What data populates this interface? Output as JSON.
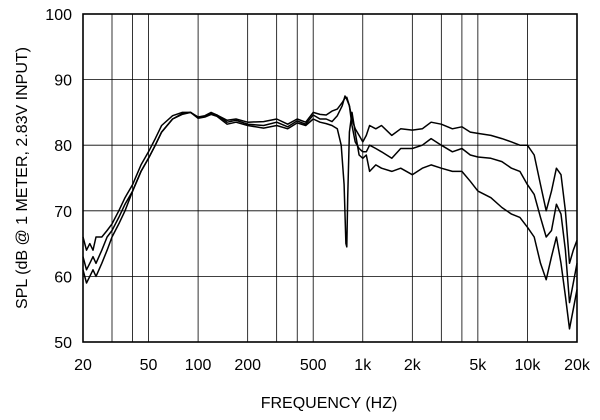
{
  "chart_data": {
    "type": "line",
    "title": "",
    "xlabel": "FREQUENCY  (HZ)",
    "ylabel": "SPL (dB @ 1 METER, 2.83V INPUT)",
    "x_scale": "log",
    "xlim": [
      20,
      20000
    ],
    "ylim": [
      50,
      100
    ],
    "grid": true,
    "legend": "none",
    "x_ticks": [
      {
        "value": 20,
        "label": "20"
      },
      {
        "value": 50,
        "label": "50"
      },
      {
        "value": 100,
        "label": "100"
      },
      {
        "value": 200,
        "label": "200"
      },
      {
        "value": 500,
        "label": "500"
      },
      {
        "value": 1000,
        "label": "1k"
      },
      {
        "value": 2000,
        "label": "2k"
      },
      {
        "value": 5000,
        "label": "5k"
      },
      {
        "value": 10000,
        "label": "10k"
      },
      {
        "value": 20000,
        "label": "20k"
      }
    ],
    "x_grid": [
      20,
      30,
      40,
      50,
      100,
      200,
      300,
      400,
      500,
      1000,
      2000,
      3000,
      4000,
      5000,
      10000,
      20000
    ],
    "y_ticks": [
      {
        "value": 50,
        "label": "50"
      },
      {
        "value": 60,
        "label": "60"
      },
      {
        "value": 70,
        "label": "70"
      },
      {
        "value": 80,
        "label": "80"
      },
      {
        "value": 90,
        "label": "90"
      },
      {
        "value": 100,
        "label": "100"
      }
    ],
    "series": [
      {
        "x": [
          20,
          21,
          22,
          23,
          24,
          26,
          28,
          30,
          33,
          36,
          40,
          45,
          50,
          55,
          60,
          70,
          80,
          90,
          100,
          110,
          120,
          130,
          150,
          170,
          200,
          250,
          300,
          350,
          400,
          450,
          500,
          550,
          600,
          650,
          700,
          750,
          780,
          800,
          830,
          860,
          900,
          950,
          1000,
          1050,
          1100,
          1200,
          1300,
          1500,
          1700,
          2000,
          2300,
          2600,
          3000,
          3500,
          4000,
          4500,
          5000,
          6000,
          7000,
          8000,
          9000,
          10000,
          11000,
          12000,
          13000,
          14000,
          15000,
          16000,
          17000,
          18000,
          19000,
          20000
        ],
        "values": [
          66,
          64,
          65,
          64,
          66,
          66,
          67,
          68,
          70,
          72,
          74,
          77,
          79,
          81,
          83,
          84.5,
          85,
          85,
          84.3,
          84.5,
          85,
          84.6,
          83.8,
          84,
          83.5,
          83.6,
          84,
          83.2,
          84,
          83.5,
          85,
          84.7,
          84.6,
          85.2,
          85.5,
          86.5,
          87.2,
          87.3,
          86,
          84,
          82.5,
          81.5,
          80.5,
          81.5,
          83,
          82.5,
          83,
          81.5,
          82.5,
          82.3,
          82.5,
          83.5,
          83.2,
          82.5,
          82.8,
          82,
          81.8,
          81.5,
          81,
          80.5,
          80,
          80,
          78.5,
          74,
          70,
          73,
          76.5,
          75.5,
          70,
          62,
          64,
          65.5
        ]
      },
      {
        "x": [
          20,
          21,
          22,
          23,
          24,
          26,
          28,
          30,
          33,
          36,
          40,
          45,
          50,
          55,
          60,
          70,
          80,
          90,
          100,
          110,
          120,
          130,
          150,
          170,
          200,
          250,
          300,
          350,
          400,
          450,
          500,
          550,
          600,
          650,
          700,
          750,
          780,
          800,
          830,
          860,
          900,
          950,
          1000,
          1050,
          1100,
          1200,
          1300,
          1500,
          1700,
          2000,
          2300,
          2600,
          3000,
          3500,
          4000,
          4500,
          5000,
          6000,
          7000,
          8000,
          9000,
          10000,
          11000,
          12000,
          13000,
          14000,
          15000,
          16000,
          17000,
          18000,
          19000,
          20000
        ],
        "values": [
          63,
          61,
          62,
          63,
          62,
          64,
          66,
          67,
          69,
          71,
          73,
          76,
          78,
          80,
          82,
          84,
          84.8,
          85,
          84.2,
          84.4,
          84.9,
          84.6,
          83.5,
          83.8,
          83.2,
          83,
          83.5,
          82.8,
          83.7,
          83.2,
          84.6,
          84,
          84,
          83.6,
          84.5,
          86,
          87.5,
          87,
          86,
          83,
          80.5,
          79.5,
          79,
          79,
          80,
          79.5,
          79,
          78,
          79.5,
          79.5,
          80,
          81,
          80,
          79,
          79.5,
          78.5,
          78.2,
          78,
          77.5,
          76.5,
          76,
          74,
          72.5,
          69,
          66,
          67,
          71,
          69.5,
          64,
          56,
          59,
          62
        ]
      },
      {
        "x": [
          20,
          21,
          22,
          23,
          24,
          26,
          28,
          30,
          33,
          36,
          40,
          45,
          50,
          55,
          60,
          70,
          80,
          90,
          100,
          110,
          120,
          130,
          150,
          170,
          200,
          250,
          300,
          350,
          400,
          450,
          500,
          550,
          600,
          650,
          700,
          740,
          770,
          790,
          800,
          810,
          830,
          860,
          900,
          950,
          1000,
          1050,
          1100,
          1200,
          1300,
          1500,
          1700,
          2000,
          2300,
          2600,
          3000,
          3500,
          4000,
          4500,
          5000,
          6000,
          7000,
          8000,
          9000,
          10000,
          11000,
          12000,
          13000,
          14000,
          15000,
          16000,
          17000,
          18000,
          19000,
          20000
        ],
        "values": [
          61,
          59,
          60,
          61,
          60,
          62,
          64,
          66,
          68,
          70,
          73,
          76,
          78,
          80,
          82,
          84,
          84.7,
          85,
          84.1,
          84.3,
          84.7,
          84.4,
          83.2,
          83.5,
          83,
          82.6,
          83,
          82.5,
          83.4,
          83,
          84,
          83.5,
          83.3,
          83,
          82.5,
          80,
          74,
          65,
          64.5,
          72,
          82,
          85,
          82,
          78.5,
          78,
          78.5,
          76,
          77,
          76.5,
          76,
          76.5,
          75.5,
          76.5,
          77,
          76.5,
          76,
          76,
          74.5,
          73,
          72,
          70.5,
          69.5,
          69,
          67.5,
          66,
          62,
          59.5,
          63,
          66,
          62,
          57,
          52,
          55,
          58
        ]
      }
    ]
  }
}
